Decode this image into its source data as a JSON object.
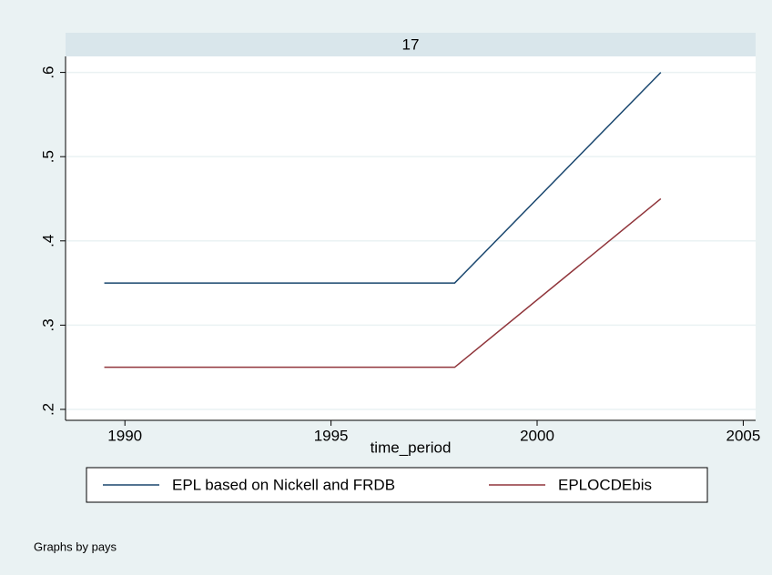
{
  "chart_data": {
    "type": "line",
    "panel_label": "17",
    "x_label": "time_period",
    "note": "Graphs by pays",
    "x": [
      1989.5,
      1998,
      2003
    ],
    "series": [
      {
        "name": "EPL based on Nickell and FRDB",
        "color": "#1a476f",
        "values": [
          0.35,
          0.35,
          0.6
        ]
      },
      {
        "name": "EPLOCDEbis",
        "color": "#90353b",
        "values": [
          0.25,
          0.25,
          0.45
        ]
      }
    ],
    "xlim": [
      1988.56,
      2005.3
    ],
    "xticks": [
      1990,
      1995,
      2000,
      2005
    ],
    "ylim": [
      0.187,
      0.619
    ],
    "yticks": [
      {
        "value": 0.2,
        "label": ".2"
      },
      {
        "value": 0.3,
        "label": ".3"
      },
      {
        "value": 0.4,
        "label": ".4"
      },
      {
        "value": 0.5,
        "label": ".5"
      },
      {
        "value": 0.6,
        "label": ".6"
      }
    ],
    "grid": true
  }
}
